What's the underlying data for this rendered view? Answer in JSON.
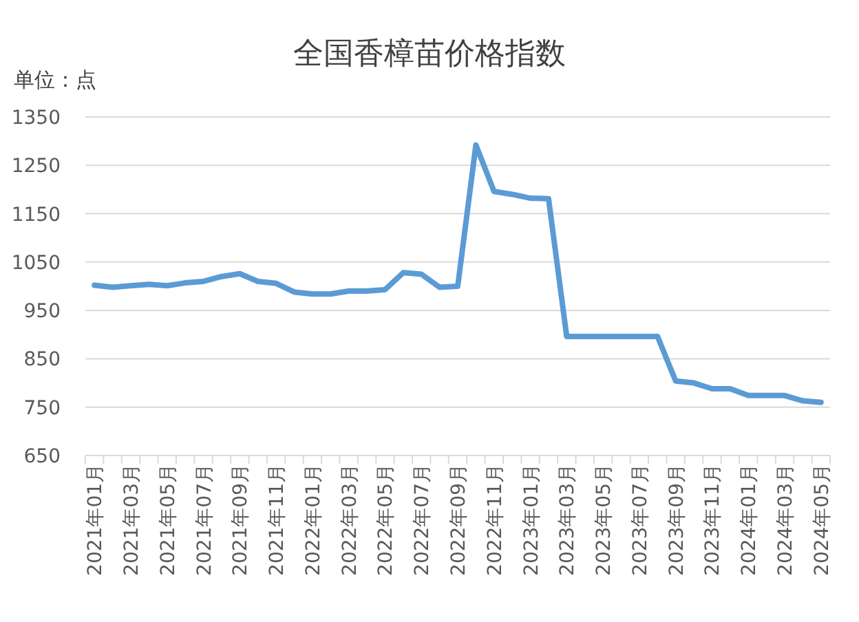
{
  "chart_data": {
    "type": "line",
    "title": "全国香樟苗价格指数",
    "annotations": [
      "单位：点"
    ],
    "categories": [
      "2021年01月",
      null,
      "2021年03月",
      null,
      "2021年05月",
      null,
      "2021年07月",
      null,
      "2021年09月",
      null,
      "2021年11月",
      null,
      "2022年01月",
      null,
      "2022年03月",
      null,
      "2022年05月",
      null,
      "2022年07月",
      null,
      "2022年09月",
      null,
      "2022年11月",
      null,
      "2023年01月",
      null,
      "2023年03月",
      null,
      "2023年05月",
      null,
      "2023年07月",
      null,
      "2023年09月",
      null,
      "2023年11月",
      null,
      "2024年01月",
      null,
      "2024年03月",
      null,
      "2024年05月"
    ],
    "series": [
      {
        "color": "#5b9bd5",
        "values": [
          1002,
          998,
          1001,
          1004,
          1001,
          1007,
          1010,
          1020,
          1026,
          1010,
          1006,
          988,
          984,
          984,
          990,
          990,
          993,
          1028,
          1025,
          998,
          1000,
          1292,
          1196,
          1190,
          1182,
          1181,
          896,
          896,
          896,
          896,
          896,
          896,
          804,
          800,
          788,
          788,
          774,
          774,
          774,
          763,
          760
        ]
      }
    ],
    "ylim": [
      650,
      1350
    ],
    "yticks": [
      650,
      750,
      850,
      950,
      1050,
      1150,
      1250,
      1350
    ],
    "grid": "y",
    "marker": "none",
    "line_style": "solid"
  }
}
